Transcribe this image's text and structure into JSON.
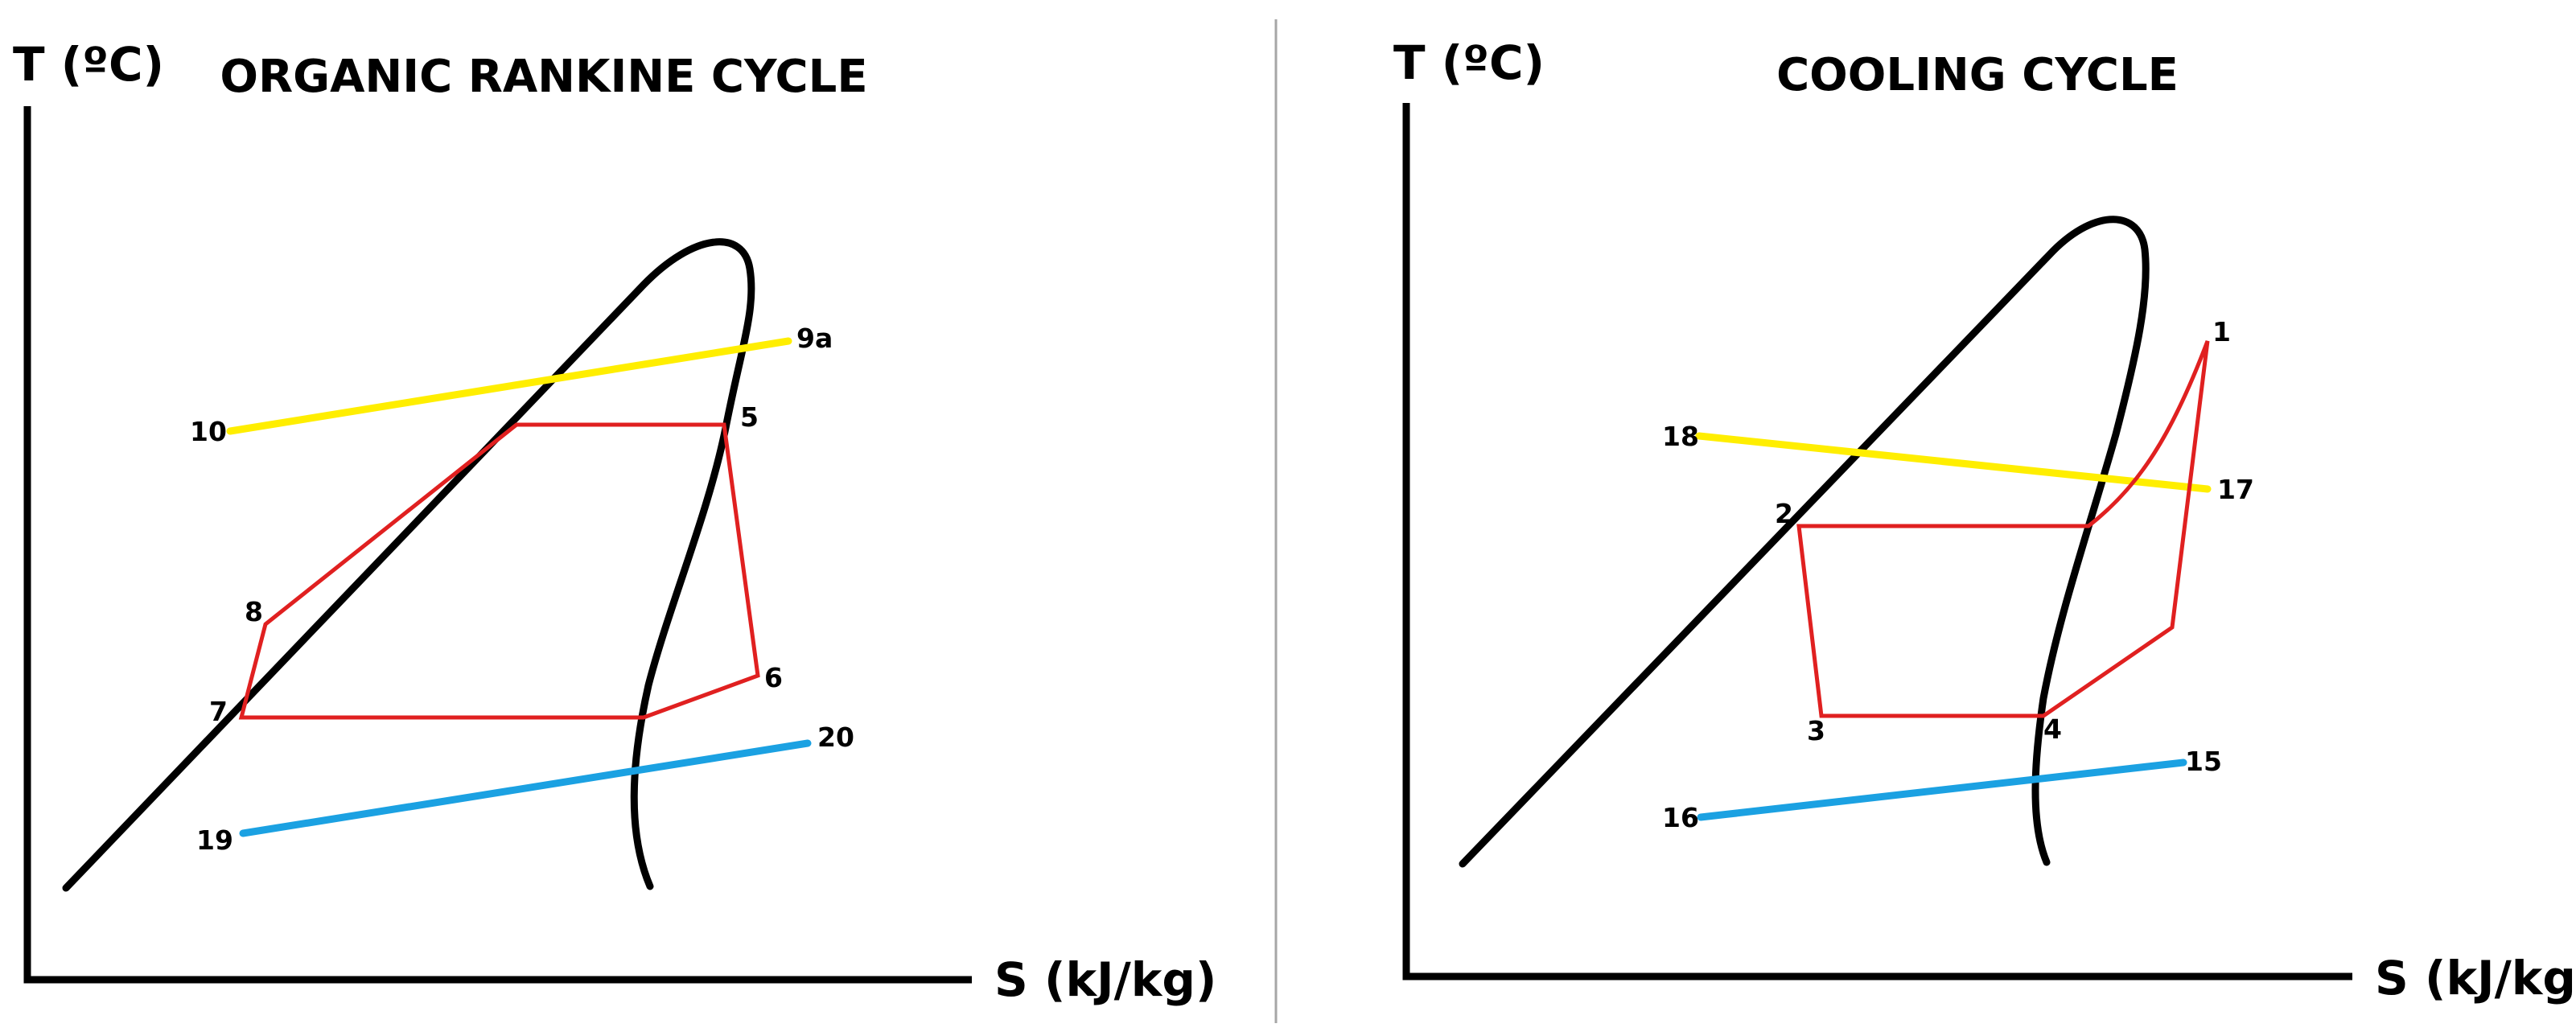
{
  "colors": {
    "cycle_line": "#e02020",
    "hot_stream": "#ffee00",
    "cold_stream": "#1ba1e2",
    "dome": "#000000",
    "divider": "#a6a6a6"
  },
  "panels": [
    {
      "title": "ORGANIC RANKINE CYCLE",
      "y_axis_label": "T (ºC)",
      "x_axis_label": "S (kJ/kg)",
      "state_labels": [
        "10",
        "9a",
        "5",
        "8",
        "7",
        "6",
        "19",
        "20"
      ]
    },
    {
      "title": "COOLING CYCLE",
      "y_axis_label": "T (ºC)",
      "x_axis_label": "S (kJ/kg)",
      "state_labels": [
        "1",
        "18",
        "17",
        "2",
        "3",
        "4",
        "16",
        "15"
      ]
    }
  ]
}
